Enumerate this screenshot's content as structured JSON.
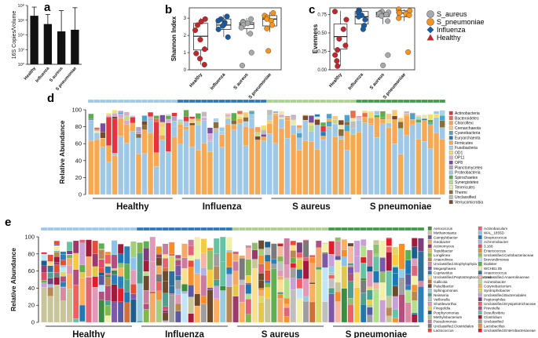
{
  "panel_letters": {
    "a": "a",
    "b": "b",
    "c": "c",
    "d": "d",
    "e": "e"
  },
  "colors": {
    "healthy": "#c0272d",
    "influenza": "#1c5aa0",
    "s_aureus": "#a7a9ac",
    "s_pneumoniae": "#f7941d",
    "strip_healthy": "#9ec8e6",
    "strip_influenza": "#2b78b8",
    "strip_s_aureus": "#a9d18e",
    "strip_s_pneumoniae": "#3e9b4a"
  },
  "legend": {
    "s_aureus": "S_aureus",
    "s_pneumoniae": "S_pneumoniae",
    "influenza": "Influenza",
    "healthy": "Healthy"
  },
  "chart_data": [
    {
      "id": "a",
      "type": "bar",
      "ylabel": "16S Copies/Volume",
      "yscale": "log",
      "ylim": [
        1,
        100000000
      ],
      "yticks": [
        1,
        100,
        10000,
        1000000,
        100000000
      ],
      "ytick_labels": [
        "10⁰",
        "10²",
        "10⁴",
        "10⁶",
        "10⁸"
      ],
      "categories": [
        "Healthy",
        "Influenza",
        "S aureus",
        "S pneumoniae"
      ],
      "values": [
        4000000,
        300000,
        30000,
        50000
      ],
      "err_low": [
        100000,
        5000,
        1000,
        1000
      ],
      "err_high": [
        60000000,
        6000000,
        20000000,
        50000000
      ]
    },
    {
      "id": "b",
      "type": "box",
      "ylabel": "Shannon Index",
      "ylim": [
        0,
        3.6
      ],
      "yticks": [
        0,
        1,
        2,
        3
      ],
      "categories": [
        "Healthy",
        "Influenza",
        "S aureus",
        "S pneumoniae"
      ],
      "boxes": [
        {
          "q1": 1.15,
          "median": 1.95,
          "q3": 2.7,
          "lo": 0.3,
          "hi": 3.0
        },
        {
          "q1": 2.35,
          "median": 2.6,
          "q3": 2.95,
          "lo": 1.9,
          "hi": 3.2
        },
        {
          "q1": 2.4,
          "median": 2.65,
          "q3": 2.75,
          "lo": 2.05,
          "hi": 3.0
        },
        {
          "q1": 2.55,
          "median": 2.95,
          "q3": 3.15,
          "lo": 2.2,
          "hi": 3.35
        }
      ],
      "points": [
        [
          2.95,
          2.8,
          2.6,
          2.3,
          1.75,
          1.2,
          0.95,
          0.65,
          0.3
        ],
        [
          3.1,
          2.95,
          2.85,
          2.75,
          2.65,
          2.55,
          2.35,
          1.9
        ],
        [
          2.95,
          2.8,
          2.75,
          2.7,
          2.6,
          2.45,
          2.1,
          1.0,
          0.25
        ],
        [
          3.3,
          3.15,
          3.05,
          2.95,
          2.85,
          2.6,
          2.4,
          1.1
        ]
      ]
    },
    {
      "id": "c",
      "type": "box",
      "ylabel": "Evenness",
      "ylim": [
        0,
        0.84
      ],
      "yticks": [
        0,
        0.25,
        0.5,
        0.75
      ],
      "ytick_labels": [
        "0.00",
        "0.25",
        "0.50",
        "0.75"
      ],
      "categories": [
        "Healthy",
        "Influenza",
        "S aureus",
        "S pneumoniae"
      ],
      "boxes": [
        {
          "q1": 0.28,
          "median": 0.45,
          "q3": 0.62,
          "lo": 0.05,
          "hi": 0.8
        },
        {
          "q1": 0.62,
          "median": 0.72,
          "q3": 0.79,
          "lo": 0.55,
          "hi": 0.82
        },
        {
          "q1": 0.72,
          "median": 0.76,
          "q3": 0.78,
          "lo": 0.62,
          "hi": 0.8
        },
        {
          "q1": 0.72,
          "median": 0.77,
          "q3": 0.8,
          "lo": 0.66,
          "hi": 0.82
        }
      ],
      "points": [
        [
          0.79,
          0.68,
          0.55,
          0.42,
          0.33,
          0.27,
          0.2,
          0.12,
          0.05
        ],
        [
          0.81,
          0.79,
          0.77,
          0.74,
          0.72,
          0.68,
          0.6,
          0.55
        ],
        [
          0.79,
          0.78,
          0.77,
          0.76,
          0.75,
          0.73,
          0.66,
          0.2,
          0.06
        ],
        [
          0.82,
          0.8,
          0.78,
          0.77,
          0.76,
          0.74,
          0.7,
          0.24
        ]
      ]
    },
    {
      "id": "d",
      "type": "stacked_bar",
      "ylabel": "Relative Abundance",
      "ylim": [
        0,
        100
      ],
      "yticks": [
        0,
        20,
        40,
        60,
        80,
        100
      ],
      "groups": [
        "Healthy",
        "Influenza",
        "S aureus",
        "S pneumoniae"
      ],
      "group_sizes": [
        15,
        15,
        15,
        15
      ],
      "legend": [
        "Actinobacteria",
        "Bacteroidetes",
        "Chloroflexi",
        "Crenarchaeota",
        "Cyanobacteria",
        "Euryarchaeota",
        "Firmicutes",
        "Fusobacteria",
        "OD1",
        "OP11",
        "OP8",
        "Planctomycetes",
        "Proteobacteria",
        "Spirochaetes",
        "Synergistetes",
        "Tenericutes",
        "Thermi",
        "Unclassified",
        "Verrucomicrobia"
      ],
      "legend_colors": [
        "#e4343f",
        "#e46f4a",
        "#f4a259",
        "#f7c97a",
        "#4fa3c9",
        "#2d7bb6",
        "#f5a955",
        "#a9d1e8",
        "#f2e06c",
        "#d6a9d3",
        "#7a4e9f",
        "#b5a0c9",
        "#9fc8e6",
        "#5fae4e",
        "#c1d98a",
        "#e8e8b0",
        "#8c6d3a",
        "#bdbdbd",
        "#7b4a2c"
      ]
    },
    {
      "id": "e",
      "type": "stacked_bar",
      "ylabel": "Relative Abundance",
      "ylim": [
        0,
        100
      ],
      "yticks": [
        0,
        20,
        40,
        60,
        80,
        100
      ],
      "groups": [
        "Healthy",
        "Influenza",
        "S aureus",
        "S pneumoniae"
      ],
      "group_sizes": [
        15,
        15,
        15,
        15
      ],
      "legend": [
        "Aerococcus",
        "Methanosaeta",
        "Campylobacter",
        "Geobacter",
        "Actinomyces",
        "Tepidibacter",
        "Longilinea",
        "Anaerolinea",
        "Unclassified.Stophylophyla",
        "Megasphaera",
        "Cupriavidus",
        "Unclassified.Peptostreptococcaceae",
        "Gallicola",
        "Paludibacter",
        "Sphingomonas",
        "Neisseria",
        "Veillonella",
        "Shuttleworthia",
        "Finegoldia",
        "Porphyromonas",
        "Methylobacterium",
        "Pseudomonas",
        "Unclassified.Clostridiales",
        "Lactococcus",
        "Actinobaculum",
        "WAL_1855D",
        "Streptococcus",
        "Achromobacter",
        "3.168",
        "Enterococcus",
        "Unclassified.Carlobacteriaceae",
        "Brevundimonas",
        "Dialister",
        "WCHB1.05",
        "Anaerococcus",
        "Unclassified.Anaerolinaceae",
        "Acinetobacter",
        "Corynebacterium",
        "Syntrophobacter",
        "Unclassified.Bacteroidales",
        "Peptoniphilus",
        "Unclassified.Erysipelotrichaceae",
        "Prevotella",
        "Desulfovibrio",
        "Clostridium",
        "Unclassified",
        "Lactobacillus",
        "Unclassified.Enterobacteriaceae"
      ],
      "legend_colors": [
        "#3b8e3f",
        "#c9c59a",
        "#5a5a9e",
        "#f2a96a",
        "#9b3a6b",
        "#e2c84a",
        "#82b74b",
        "#b98752",
        "#d98aa0",
        "#7d58a6",
        "#2c7fb8",
        "#f8e08e",
        "#cf6f3a",
        "#6e4a2c",
        "#99cbe0",
        "#4f9f8f",
        "#bfbfbf",
        "#de9ab8",
        "#f6cc3e",
        "#1d5f8a",
        "#a4cf7a",
        "#c87c9f",
        "#7a7a7a",
        "#e64d36",
        "#e06377",
        "#8cc3ea",
        "#1f77b4",
        "#b3b3e0",
        "#d94f6a",
        "#f28e2b",
        "#8fbf6c",
        "#c1e5f5",
        "#5fb050",
        "#f0f0a8",
        "#2f6f9a",
        "#f7b6a1",
        "#b2df8a",
        "#fdae61",
        "#d9d96a",
        "#c6a0d6",
        "#7c3e7c",
        "#ef5e60",
        "#b34f7f",
        "#66c2a5",
        "#a21b3a",
        "#9e9e9e",
        "#f39230",
        "#e11d2c"
      ]
    }
  ]
}
